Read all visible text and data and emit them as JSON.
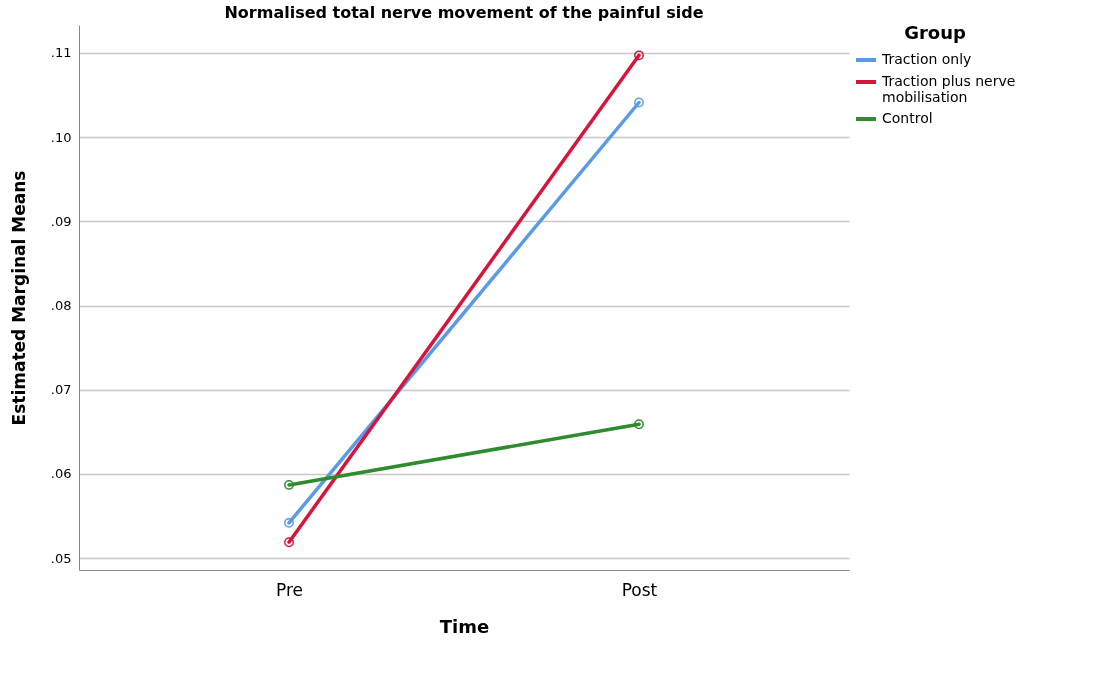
{
  "chart_data": {
    "type": "line",
    "title": "Normalised total nerve movement of the painful side",
    "xlabel": "Time",
    "ylabel": "Estimated Marginal Means",
    "legend_title": "Group",
    "categories": [
      "Pre",
      "Post"
    ],
    "series": [
      {
        "name": "Traction only",
        "color": "#5a9ae6",
        "values": [
          0.0542,
          0.1041
        ]
      },
      {
        "name": "Traction plus nerve mobilisation",
        "color": "#d6153c",
        "values": [
          0.0519,
          0.1097
        ]
      },
      {
        "name": "Control",
        "color": "#2e8b2e",
        "values": [
          0.0587,
          0.0659
        ]
      }
    ],
    "ylim": [
      0.0486,
      0.1133
    ],
    "yticks": [
      {
        "value": 0.05,
        "label": ".05"
      },
      {
        "value": 0.06,
        "label": ".06"
      },
      {
        "value": 0.07,
        "label": ".07"
      },
      {
        "value": 0.08,
        "label": ".08"
      },
      {
        "value": 0.09,
        "label": ".09"
      },
      {
        "value": 0.1,
        "label": ".10"
      },
      {
        "value": 0.11,
        "label": ".11"
      }
    ],
    "grid": "y",
    "legend": "top right",
    "marker": "circle",
    "line_style": "solid"
  }
}
